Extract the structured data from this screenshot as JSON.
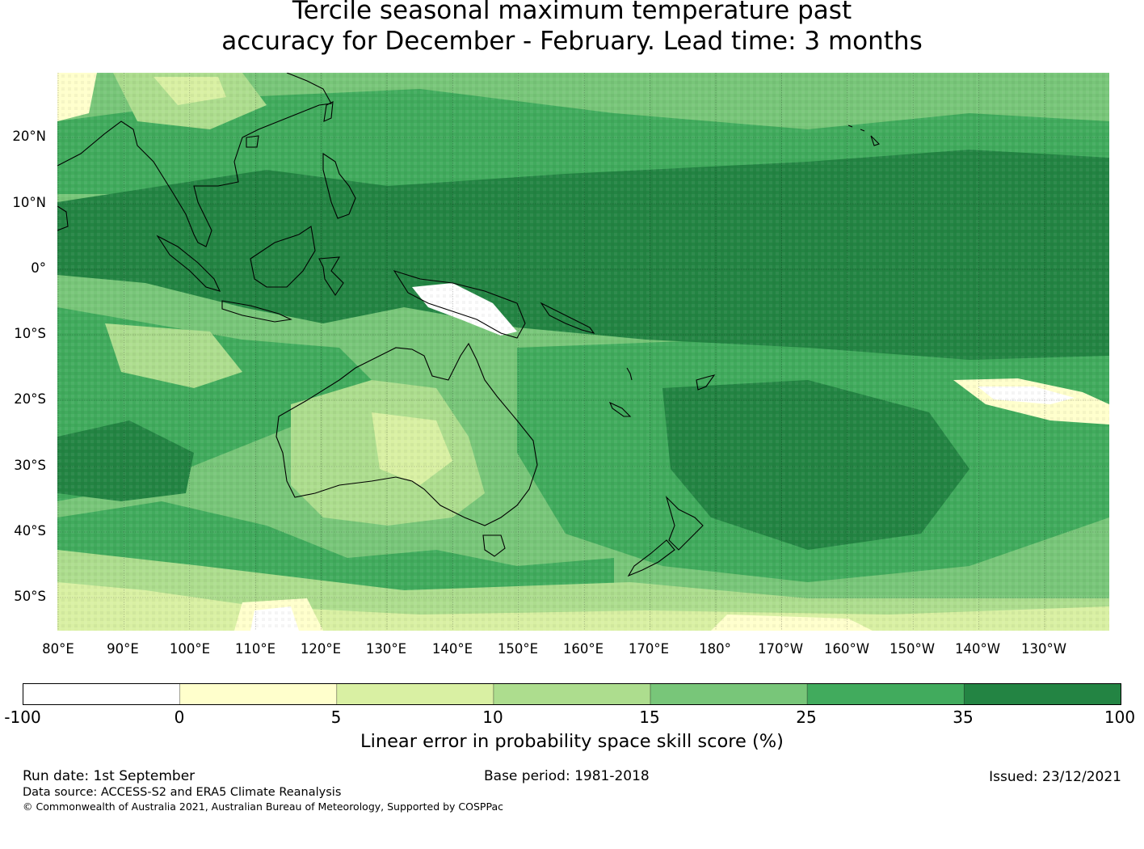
{
  "title": {
    "line1": "Tercile seasonal maximum temperature past",
    "line2": "accuracy for December - February. Lead time: 3 months"
  },
  "map": {
    "lat_ticks": [
      "20°N",
      "10°N",
      "0°",
      "10°S",
      "20°S",
      "30°S",
      "40°S",
      "50°S"
    ],
    "lon_ticks": [
      "80°E",
      "90°E",
      "100°E",
      "110°E",
      "120°E",
      "130°E",
      "140°E",
      "150°E",
      "160°E",
      "170°E",
      "180°",
      "170°W",
      "160°W",
      "150°W",
      "140°W",
      "130°W"
    ],
    "land_outline_color": "#000000"
  },
  "colorbar": {
    "title": "Linear error in probability space skill score (%)",
    "boundaries": [
      "-100",
      "0",
      "5",
      "10",
      "15",
      "25",
      "35",
      "100"
    ],
    "colors": [
      "#ffffff",
      "#ffffcc",
      "#d9f0a3",
      "#addd8e",
      "#78c679",
      "#41ab5d",
      "#238443"
    ]
  },
  "footer": {
    "run_date": "Run date: 1st September",
    "base_period": "Base period: 1981-2018",
    "issued": "Issued: 23/12/2021",
    "data_source": "Data source: ACCESS-S2 and ERA5 Climate Reanalysis",
    "copyright": "© Commonwealth of Australia 2021, Australian Bureau of Meteorology, Supported by COSPPac"
  }
}
